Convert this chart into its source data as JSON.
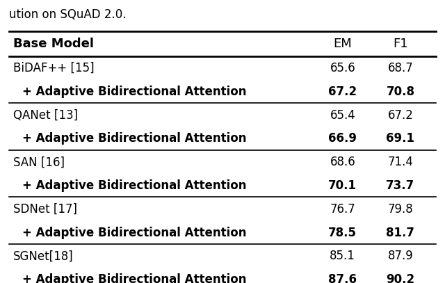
{
  "caption": "ution on SQuAD 2.0.",
  "headers": [
    "Base Model",
    "EM",
    "F1"
  ],
  "rows": [
    {
      "model": "BiDAF++ [15]",
      "em": "65.6",
      "f1": "68.7",
      "bold": false
    },
    {
      "model": "+ Adaptive Bidirectional Attention",
      "em": "67.2",
      "f1": "70.8",
      "bold": true
    },
    {
      "model": "QANet [13]",
      "em": "65.4",
      "f1": "67.2",
      "bold": false
    },
    {
      "model": "+ Adaptive Bidirectional Attention",
      "em": "66.9",
      "f1": "69.1",
      "bold": true
    },
    {
      "model": "SAN [16]",
      "em": "68.6",
      "f1": "71.4",
      "bold": false
    },
    {
      "model": "+ Adaptive Bidirectional Attention",
      "em": "70.1",
      "f1": "73.7",
      "bold": true
    },
    {
      "model": "SDNet [17]",
      "em": "76.7",
      "f1": "79.8",
      "bold": false
    },
    {
      "model": "+ Adaptive Bidirectional Attention",
      "em": "78.5",
      "f1": "81.7",
      "bold": true
    },
    {
      "model": "SGNet[18]",
      "em": "85.1",
      "f1": "87.9",
      "bold": false
    },
    {
      "model": "+ Adaptive Bidirectional Attention",
      "em": "87.6",
      "f1": "90.2",
      "bold": true
    }
  ],
  "group_dividers_after": [
    1,
    3,
    5,
    7
  ],
  "bg_color": "#ffffff",
  "text_color": "#000000",
  "header_fontsize": 13,
  "row_fontsize": 12,
  "caption_fontsize": 12,
  "fig_width": 6.4,
  "fig_height": 4.07
}
